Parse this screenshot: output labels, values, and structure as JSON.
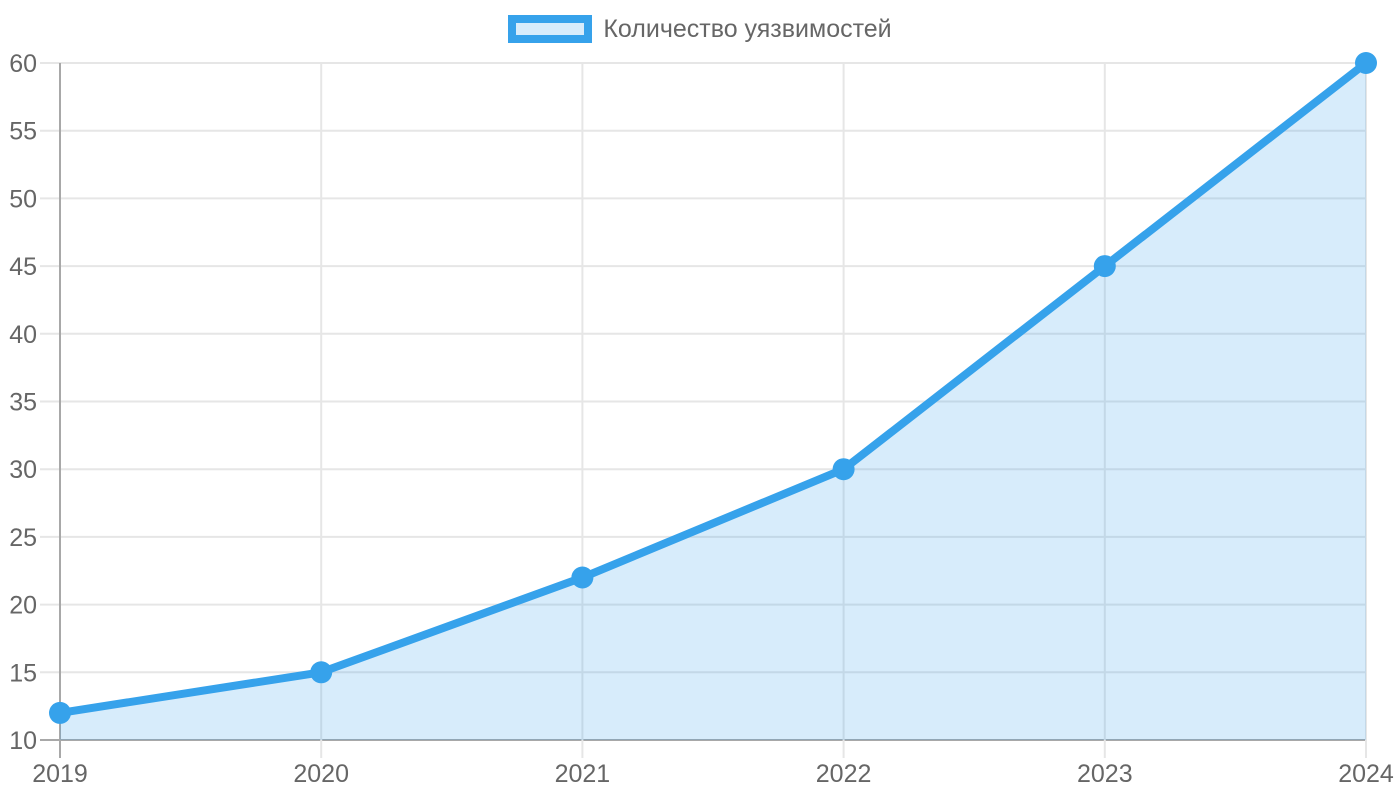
{
  "chart_data": {
    "type": "line",
    "title": "",
    "xlabel": "",
    "ylabel": "",
    "categories": [
      "2019",
      "2020",
      "2021",
      "2022",
      "2023",
      "2024"
    ],
    "series": [
      {
        "name": "Количество уязвимостей",
        "values": [
          12,
          15,
          22,
          30,
          45,
          60
        ]
      }
    ],
    "ylim": [
      10,
      60
    ],
    "yticks": [
      10,
      15,
      20,
      25,
      30,
      35,
      40,
      45,
      50,
      55,
      60
    ],
    "grid": true,
    "area_fill": true,
    "marker": "circle",
    "legend_position": "top-center",
    "colors": {
      "line": "#36A2EB",
      "area_fill_rgba": "rgba(54,162,235,0.2)",
      "legend_swatch_fill": "#D7ECFB",
      "grid_line": "#E6E6E6",
      "axis_line": "#A8A8A8",
      "tick_label": "#666666",
      "background": "#FFFFFF"
    }
  },
  "legend": {
    "series_label": "Количество уязвимостей"
  }
}
